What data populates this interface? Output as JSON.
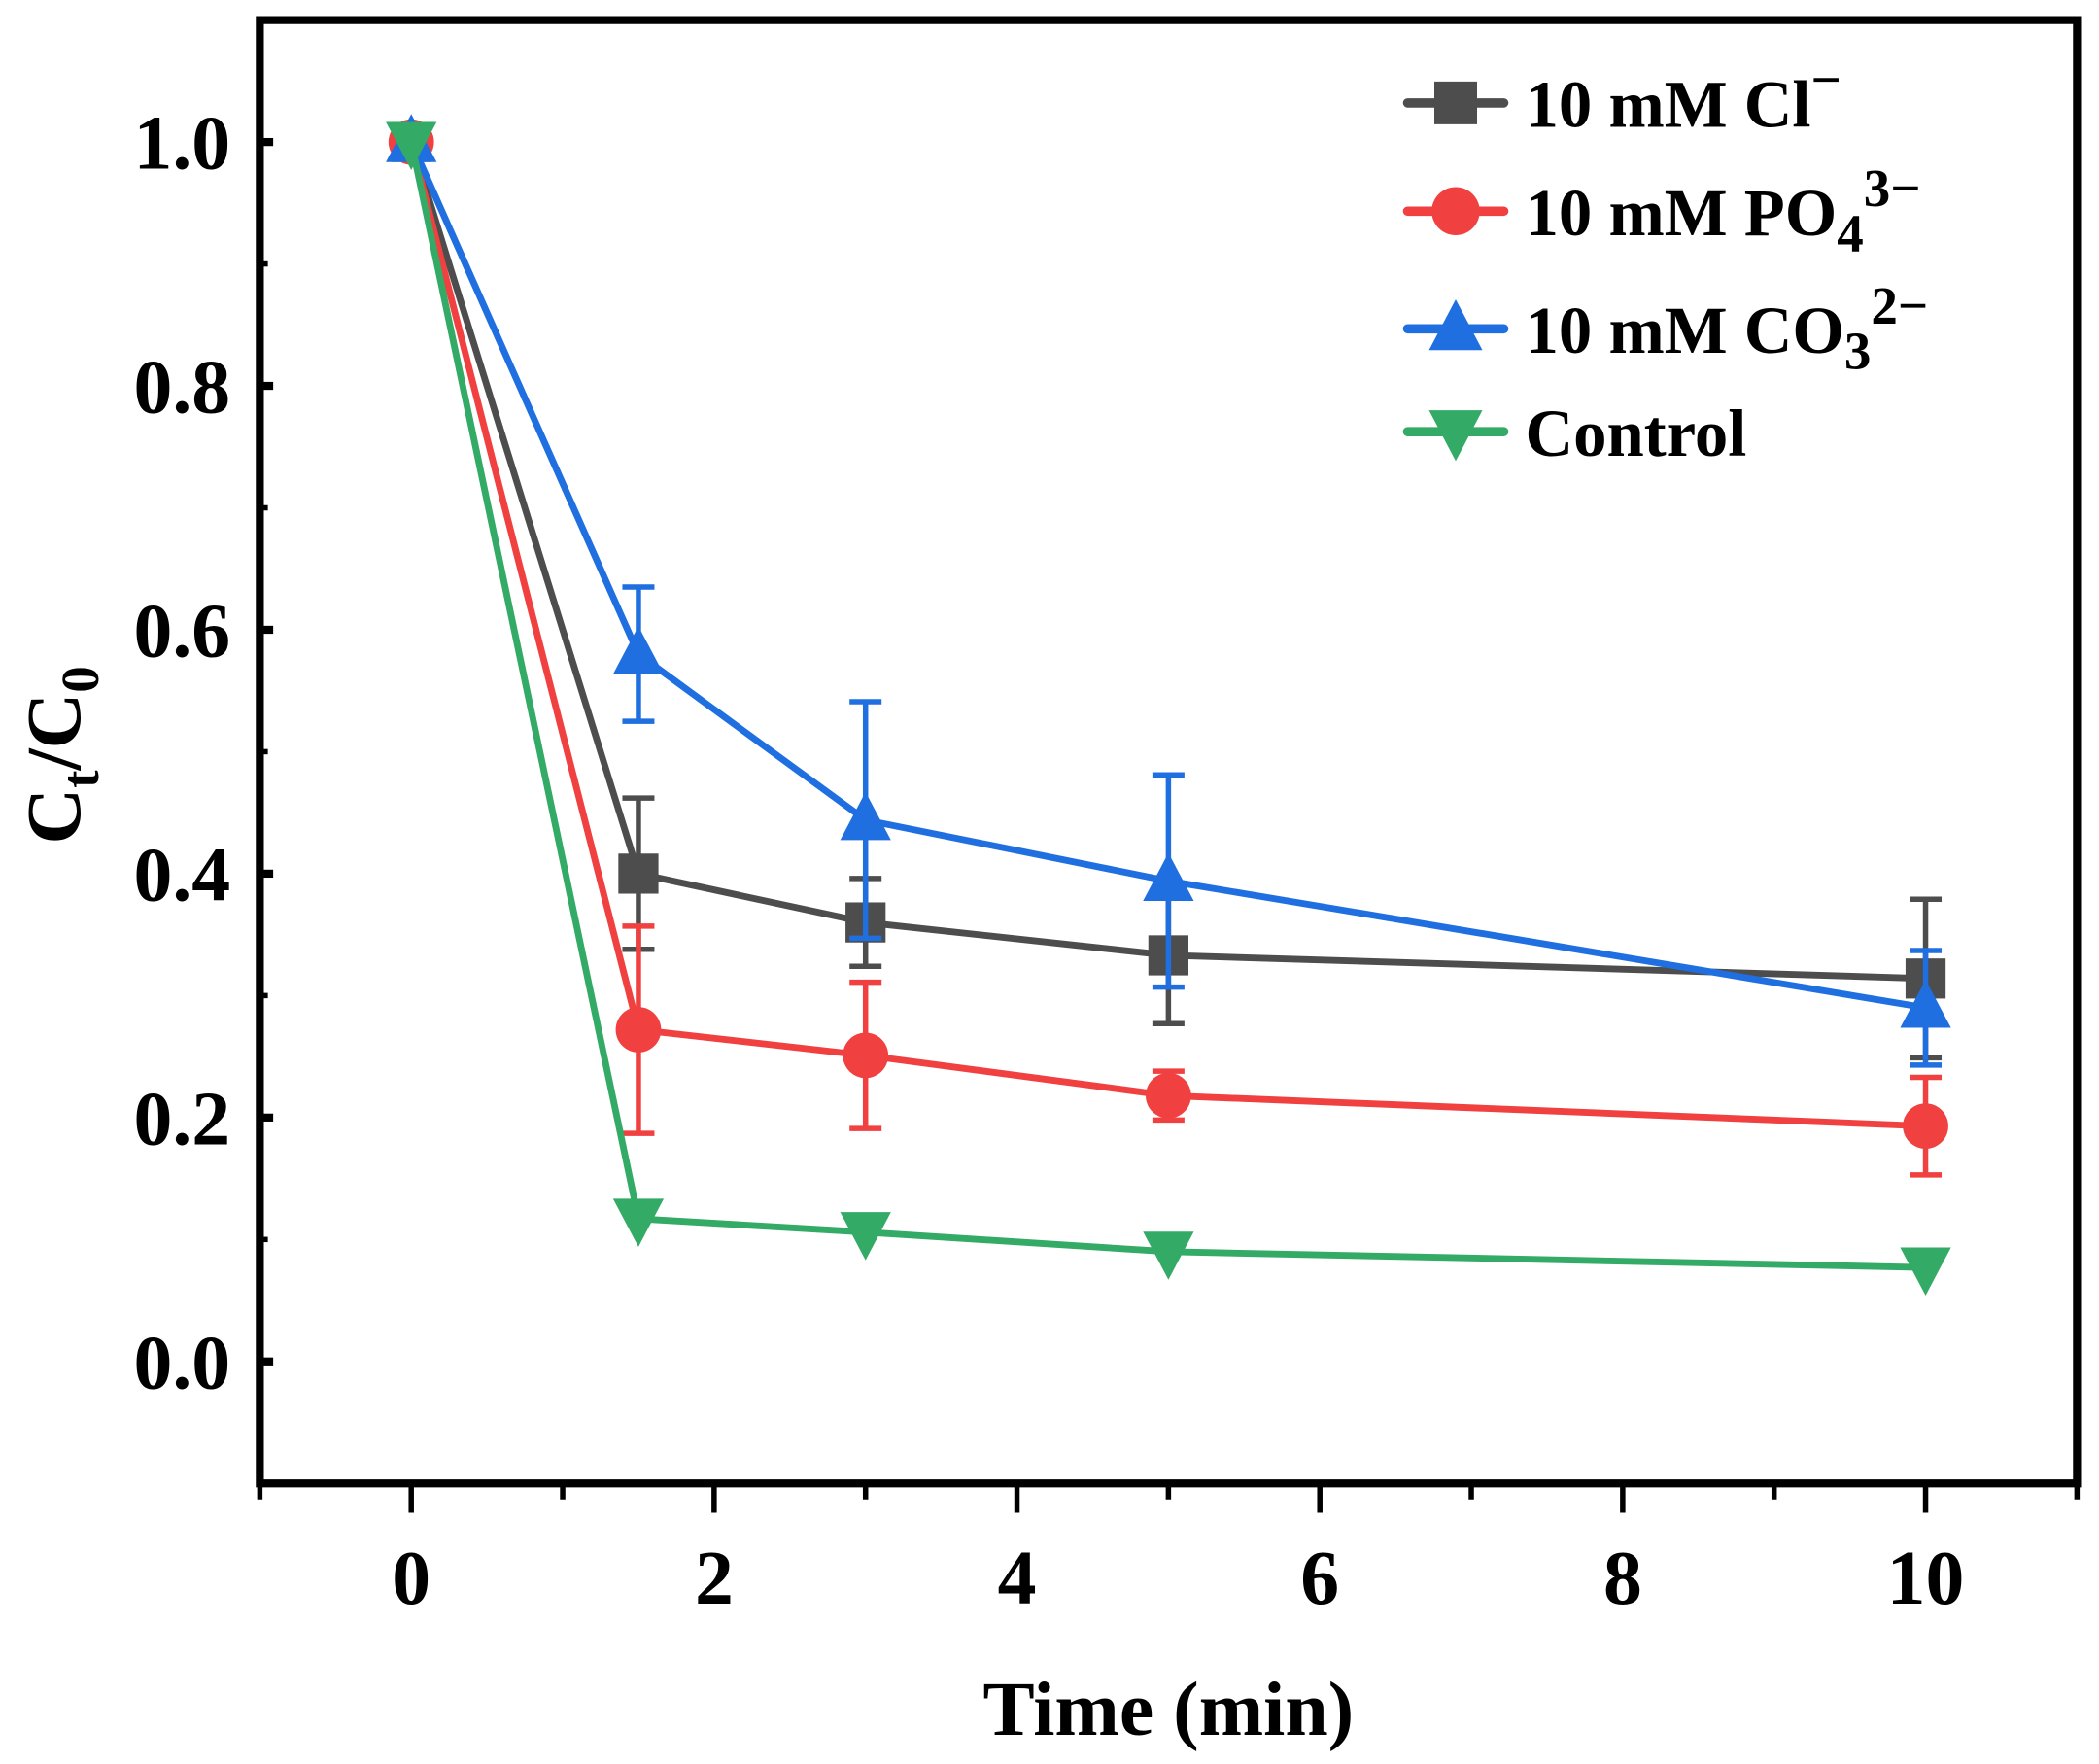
{
  "chart_data": {
    "type": "line",
    "title": "",
    "xlabel": "Time (min)",
    "ylabel": {
      "main": "C",
      "sub1": "t",
      "slash": "/C",
      "sub2": "0"
    },
    "xlim": [
      -1,
      11
    ],
    "ylim": [
      -0.1,
      1.1
    ],
    "xticks": [
      0,
      2,
      4,
      6,
      8,
      10
    ],
    "xtick_labels": [
      "0",
      "2",
      "4",
      "6",
      "8",
      "10"
    ],
    "yticks": [
      0.0,
      0.2,
      0.4,
      0.6,
      0.8,
      1.0
    ],
    "ytick_labels": [
      "0.0",
      "0.2",
      "0.4",
      "0.6",
      "0.8",
      "1.0"
    ],
    "grid": false,
    "legend_position": "top-right",
    "x": [
      0,
      1.5,
      3,
      5,
      10
    ],
    "series": [
      {
        "name": "10 mM Cl",
        "label": {
          "base": "10 mM Cl",
          "sub": "",
          "sup": "−"
        },
        "color": "#4d4d4d",
        "marker": "square",
        "values": [
          1.0,
          0.4,
          0.36,
          0.333,
          0.314
        ],
        "errors": [
          0.01,
          0.062,
          0.036,
          0.056,
          0.065
        ]
      },
      {
        "name": "10 mM PO4 3-",
        "label": {
          "base": "10 mM PO",
          "sub": "4",
          "sup": "3−"
        },
        "color": "#f04040",
        "marker": "circle",
        "values": [
          1.0,
          0.272,
          0.251,
          0.218,
          0.193
        ],
        "errors": [
          0.01,
          0.085,
          0.06,
          0.02,
          0.04
        ]
      },
      {
        "name": "10 mM CO3 2-",
        "label": {
          "base": "10 mM CO",
          "sub": "3",
          "sup": "2−"
        },
        "color": "#1f6fe0",
        "marker": "triangle-up",
        "values": [
          1.0,
          0.58,
          0.444,
          0.394,
          0.29
        ],
        "errors": [
          0.01,
          0.055,
          0.097,
          0.087,
          0.047
        ]
      },
      {
        "name": "Control",
        "label": {
          "base": " Control",
          "sub": "",
          "sup": ""
        },
        "color": "#33aa66",
        "marker": "triangle-down",
        "values": [
          1.0,
          0.117,
          0.106,
          0.09,
          0.077
        ],
        "errors": [
          0,
          0,
          0,
          0,
          0
        ]
      }
    ]
  }
}
